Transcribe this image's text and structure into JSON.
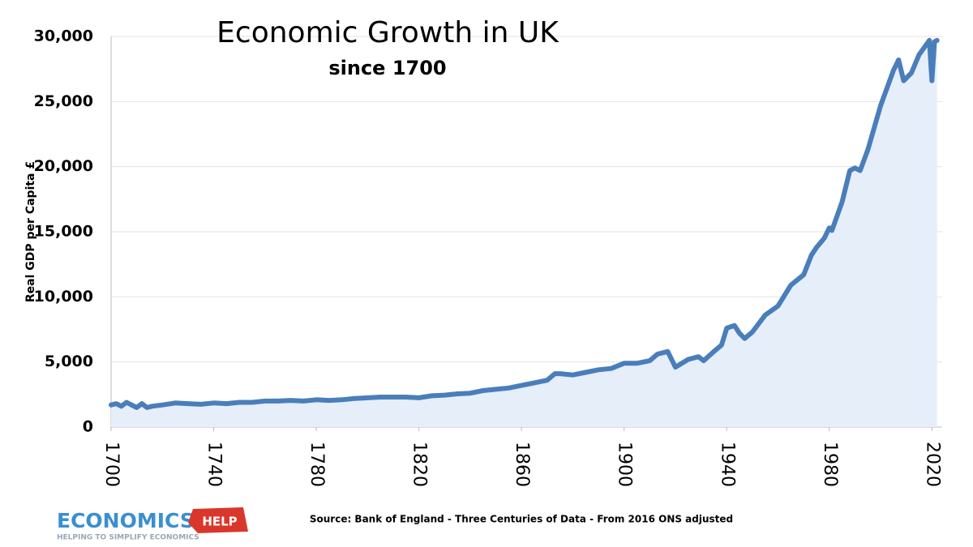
{
  "chart_data": {
    "type": "line",
    "title": "Economic Growth in UK",
    "subtitle": "since 1700",
    "y_label": "Real GDP per Capita £",
    "source": "Source: Bank of England - Three Centuries of Data - From 2016 ONS adjusted",
    "logo": {
      "name": "ECONOMICS",
      "tag": "HELP",
      "tagline": "HELPING TO SIMPLIFY ECONOMICS"
    },
    "x": [
      1700,
      1702,
      1704,
      1706,
      1708,
      1710,
      1712,
      1714,
      1716,
      1720,
      1725,
      1730,
      1735,
      1740,
      1745,
      1750,
      1755,
      1760,
      1765,
      1770,
      1775,
      1780,
      1785,
      1790,
      1795,
      1800,
      1805,
      1810,
      1815,
      1820,
      1825,
      1830,
      1835,
      1840,
      1845,
      1850,
      1855,
      1860,
      1865,
      1870,
      1873,
      1875,
      1880,
      1885,
      1890,
      1895,
      1900,
      1905,
      1910,
      1913,
      1917,
      1920,
      1925,
      1929,
      1931,
      1935,
      1938,
      1940,
      1943,
      1945,
      1947,
      1950,
      1955,
      1960,
      1965,
      1970,
      1973,
      1975,
      1978,
      1980,
      1981,
      1985,
      1988,
      1990,
      1992,
      1995,
      2000,
      2005,
      2007,
      2009,
      2012,
      2015,
      2019,
      2020,
      2021,
      2022
    ],
    "series": [
      {
        "name": "Real GDP per Capita",
        "color": "#4a7ebb",
        "area_color": "#e6eef9",
        "values": [
          1700,
          1800,
          1600,
          1900,
          1700,
          1500,
          1800,
          1500,
          1600,
          1700,
          1850,
          1800,
          1750,
          1850,
          1800,
          1900,
          1900,
          2000,
          2000,
          2050,
          2000,
          2100,
          2050,
          2100,
          2200,
          2250,
          2300,
          2300,
          2300,
          2250,
          2400,
          2450,
          2550,
          2600,
          2800,
          2900,
          3000,
          3200,
          3400,
          3600,
          4100,
          4100,
          4000,
          4200,
          4400,
          4500,
          4900,
          4900,
          5100,
          5600,
          5800,
          4600,
          5200,
          5400,
          5100,
          5800,
          6300,
          7600,
          7800,
          7200,
          6800,
          7300,
          8600,
          9300,
          10900,
          11700,
          13200,
          13800,
          14500,
          15300,
          15100,
          17300,
          19700,
          19900,
          19700,
          21300,
          24700,
          27400,
          28200,
          26600,
          27200,
          28600,
          29700,
          26600,
          29600,
          29700
        ]
      }
    ],
    "xlim": [
      1700,
      2024
    ],
    "xticks": [
      1700,
      1740,
      1780,
      1820,
      1860,
      1900,
      1940,
      1980,
      2020
    ],
    "ylim": [
      0,
      30000
    ],
    "yticks": [
      0,
      {
        "value": 5000,
        "label": "5,000"
      },
      {
        "value": 10000,
        "label": "10,000"
      },
      {
        "value": 15000,
        "label": "15,000"
      },
      {
        "value": 20000,
        "label": "20,000"
      },
      {
        "value": 25000,
        "label": "25,000"
      },
      {
        "value": 30000,
        "label": "30,000"
      }
    ],
    "grid": true
  }
}
